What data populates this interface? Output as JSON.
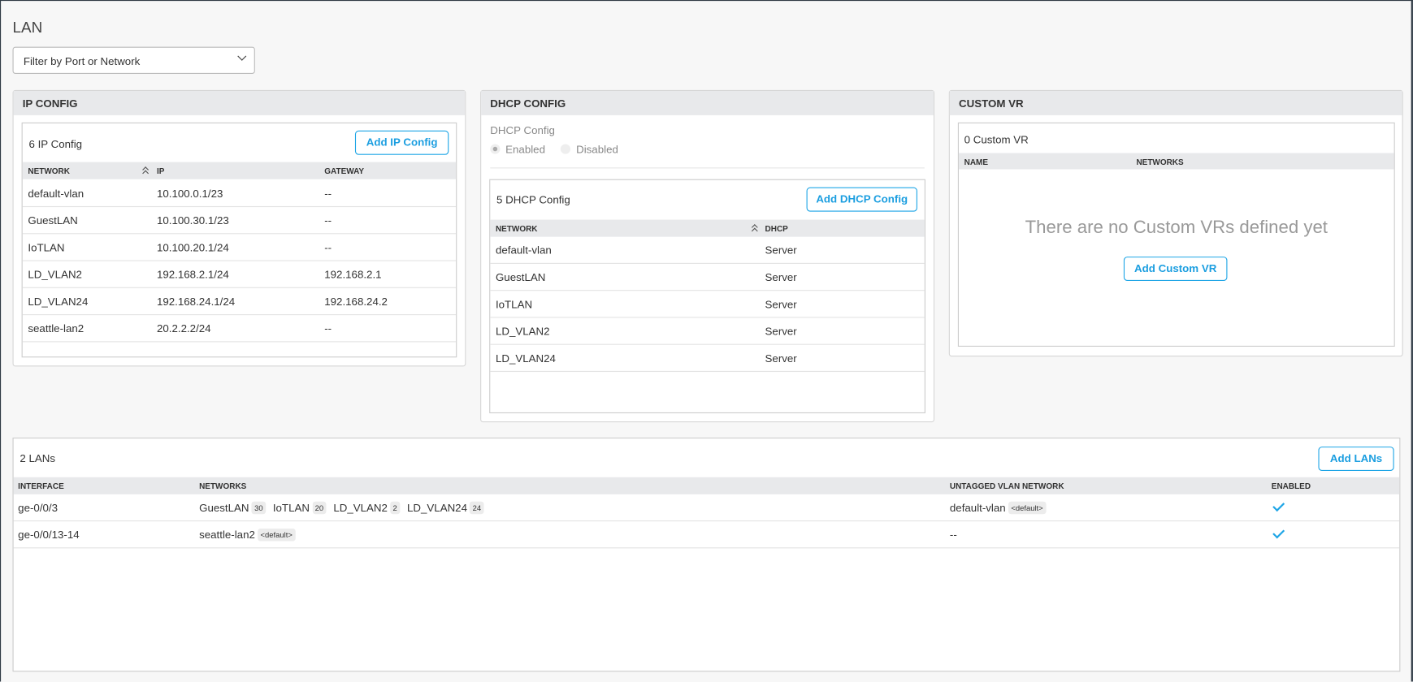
{
  "page": {
    "title": "LAN",
    "filter_placeholder": "Filter by Port or Network"
  },
  "ip_config": {
    "header": "IP CONFIG",
    "count": "6 IP Config",
    "add_label": "Add IP Config",
    "columns": [
      "NETWORK",
      "IP",
      "GATEWAY"
    ],
    "rows": [
      [
        "default-vlan",
        "10.100.0.1/23",
        "--"
      ],
      [
        "GuestLAN",
        "10.100.30.1/23",
        "--"
      ],
      [
        "IoTLAN",
        "10.100.20.1/24",
        "--"
      ],
      [
        "LD_VLAN2",
        "192.168.2.1/24",
        "192.168.2.1"
      ],
      [
        "LD_VLAN24",
        "192.168.24.1/24",
        "192.168.24.2"
      ],
      [
        "seattle-lan2",
        "20.2.2.2/24",
        "--"
      ]
    ]
  },
  "dhcp_config": {
    "header": "DHCP CONFIG",
    "field_label": "DHCP Config",
    "options": [
      "Enabled",
      "Disabled"
    ],
    "selected": "Enabled",
    "count": "5 DHCP Config",
    "add_label": "Add DHCP Config",
    "columns": [
      "NETWORK",
      "DHCP"
    ],
    "rows": [
      [
        "default-vlan",
        "Server"
      ],
      [
        "GuestLAN",
        "Server"
      ],
      [
        "IoTLAN",
        "Server"
      ],
      [
        "LD_VLAN2",
        "Server"
      ],
      [
        "LD_VLAN24",
        "Server"
      ]
    ]
  },
  "custom_vr": {
    "header": "CUSTOM VR",
    "count": "0 Custom VR",
    "columns": [
      "NAME",
      "NETWORKS"
    ],
    "empty_message": "There are no Custom VRs defined yet",
    "add_label": "Add Custom VR"
  },
  "lans": {
    "count": "2 LANs",
    "add_label": "Add LANs",
    "columns": [
      "INTERFACE",
      "NETWORKS",
      "UNTAGGED VLAN NETWORK",
      "ENABLED"
    ],
    "rows": [
      {
        "interface": "ge-0/0/3",
        "networks": [
          {
            "name": "GuestLAN",
            "tag": "30"
          },
          {
            "name": "IoTLAN",
            "tag": "20"
          },
          {
            "name": "LD_VLAN2",
            "tag": "2"
          },
          {
            "name": "LD_VLAN24",
            "tag": "24"
          }
        ],
        "untagged": "default-vlan",
        "untagged_tag": "<default>",
        "enabled": true
      },
      {
        "interface": "ge-0/0/13-14",
        "networks": [
          {
            "name": "seattle-lan2",
            "tag": "<default>"
          }
        ],
        "untagged": "--",
        "untagged_tag": null,
        "enabled": true
      }
    ]
  },
  "colors": {
    "accent": "#1ea5e6",
    "header_bg": "#e8e9eb"
  }
}
